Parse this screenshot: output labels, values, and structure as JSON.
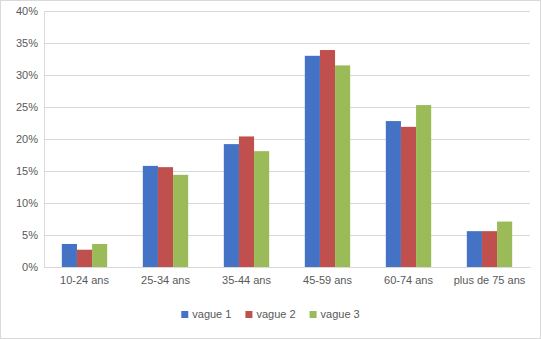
{
  "chart_data": {
    "type": "bar",
    "categories": [
      "10-24 ans",
      "25-34 ans",
      "35-44 ans",
      "45-59 ans",
      "60-74 ans",
      "plus de 75 ans"
    ],
    "series": [
      {
        "name": "vague 1",
        "color": "#4472c4",
        "values": [
          3.6,
          15.8,
          19.2,
          33.0,
          22.8,
          5.6
        ]
      },
      {
        "name": "vague 2",
        "color": "#c0504d",
        "values": [
          2.7,
          15.6,
          20.4,
          33.9,
          21.9,
          5.6
        ]
      },
      {
        "name": "vague 3",
        "color": "#9bbb59",
        "values": [
          3.6,
          14.4,
          18.1,
          31.5,
          25.3,
          7.1
        ]
      }
    ],
    "ylim": [
      0,
      40
    ],
    "yticks": [
      {
        "value": 0,
        "label": "0%"
      },
      {
        "value": 5,
        "label": "5%"
      },
      {
        "value": 10,
        "label": "10%"
      },
      {
        "value": 15,
        "label": "15%"
      },
      {
        "value": 20,
        "label": "20%"
      },
      {
        "value": 25,
        "label": "25%"
      },
      {
        "value": 30,
        "label": "30%"
      },
      {
        "value": 35,
        "label": "35%"
      },
      {
        "value": 40,
        "label": "40%"
      }
    ],
    "grid": true,
    "legend": "bottom"
  }
}
